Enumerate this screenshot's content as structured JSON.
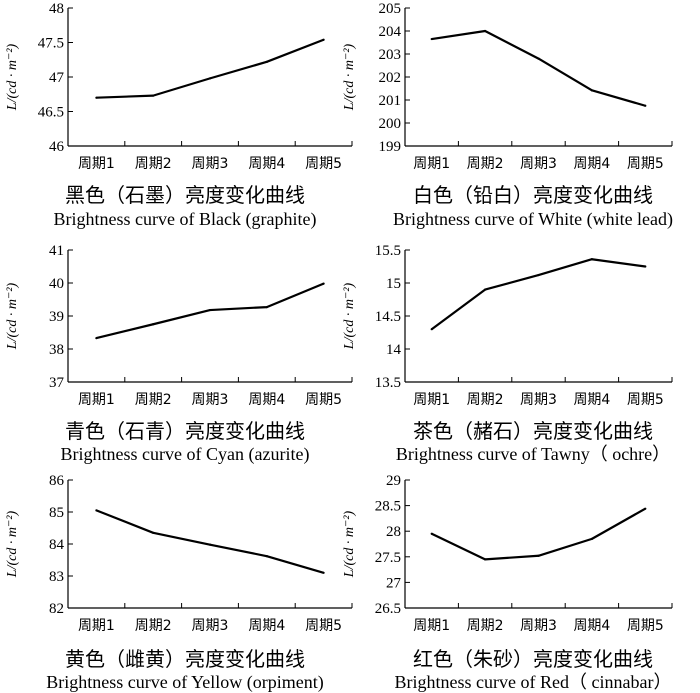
{
  "chart_data": [
    {
      "type": "line",
      "title": "黑色（石墨）亮度变化曲线",
      "subtitle": "Brightness curve of Black (graphite)",
      "ylabel": "L/(cd · m⁻²)",
      "categories": [
        "周期1",
        "周期2",
        "周期3",
        "周期4",
        "周期5"
      ],
      "yticks": [
        "46",
        "46.5",
        "47",
        "47.5",
        "48"
      ],
      "ylim": [
        46,
        48
      ],
      "values": [
        46.7,
        46.73,
        46.98,
        47.22,
        47.54
      ]
    },
    {
      "type": "line",
      "title": "白色（铅白）亮度变化曲线",
      "subtitle": "Brightness curve of White (white lead)",
      "ylabel": "L/(cd · m⁻²)",
      "categories": [
        "周期1",
        "周期2",
        "周期3",
        "周期4",
        "周期5"
      ],
      "yticks": [
        "199",
        "200",
        "201",
        "202",
        "203",
        "204",
        "205"
      ],
      "ylim": [
        199,
        205
      ],
      "values": [
        203.65,
        204.0,
        202.8,
        201.42,
        200.75
      ]
    },
    {
      "type": "line",
      "title": "青色（石青）亮度变化曲线",
      "subtitle": "Brightness curve of Cyan (azurite)",
      "ylabel": "L/(cd · m⁻²)",
      "categories": [
        "周期1",
        "周期2",
        "周期3",
        "周期4",
        "周期5"
      ],
      "yticks": [
        "37",
        "38",
        "39",
        "40",
        "41"
      ],
      "ylim": [
        37,
        41
      ],
      "values": [
        38.33,
        38.75,
        39.18,
        39.27,
        39.98
      ]
    },
    {
      "type": "line",
      "title": "茶色（赭石）亮度变化曲线",
      "subtitle": "Brightness curve of Tawny（ ochre）",
      "ylabel": "L/(cd · m⁻²)",
      "categories": [
        "周期1",
        "周期2",
        "周期3",
        "周期4",
        "周期5"
      ],
      "yticks": [
        "13.5",
        "14",
        "14.5",
        "15",
        "15.5"
      ],
      "ylim": [
        13.5,
        15.5
      ],
      "values": [
        14.3,
        14.9,
        15.12,
        15.36,
        15.25
      ]
    },
    {
      "type": "line",
      "title": "黄色（雌黄）亮度变化曲线",
      "subtitle": "Brightness curve of Yellow (orpiment)",
      "ylabel": "L/(cd · m⁻²)",
      "categories": [
        "周期1",
        "周期2",
        "周期3",
        "周期4",
        "周期5"
      ],
      "yticks": [
        "82",
        "83",
        "84",
        "85",
        "86"
      ],
      "ylim": [
        82,
        86
      ],
      "values": [
        85.05,
        84.35,
        83.98,
        83.62,
        83.1
      ]
    },
    {
      "type": "line",
      "title": "红色（朱砂）亮度变化曲线",
      "subtitle": "Brightness curve of Red（ cinnabar）",
      "ylabel": "L/(cd · m⁻²)",
      "categories": [
        "周期1",
        "周期2",
        "周期3",
        "周期4",
        "周期5"
      ],
      "yticks": [
        "26.5",
        "27",
        "27.5",
        "28",
        "28.5",
        "29"
      ],
      "ylim": [
        26.5,
        29
      ],
      "values": [
        27.95,
        27.45,
        27.52,
        27.85,
        28.44
      ]
    }
  ]
}
